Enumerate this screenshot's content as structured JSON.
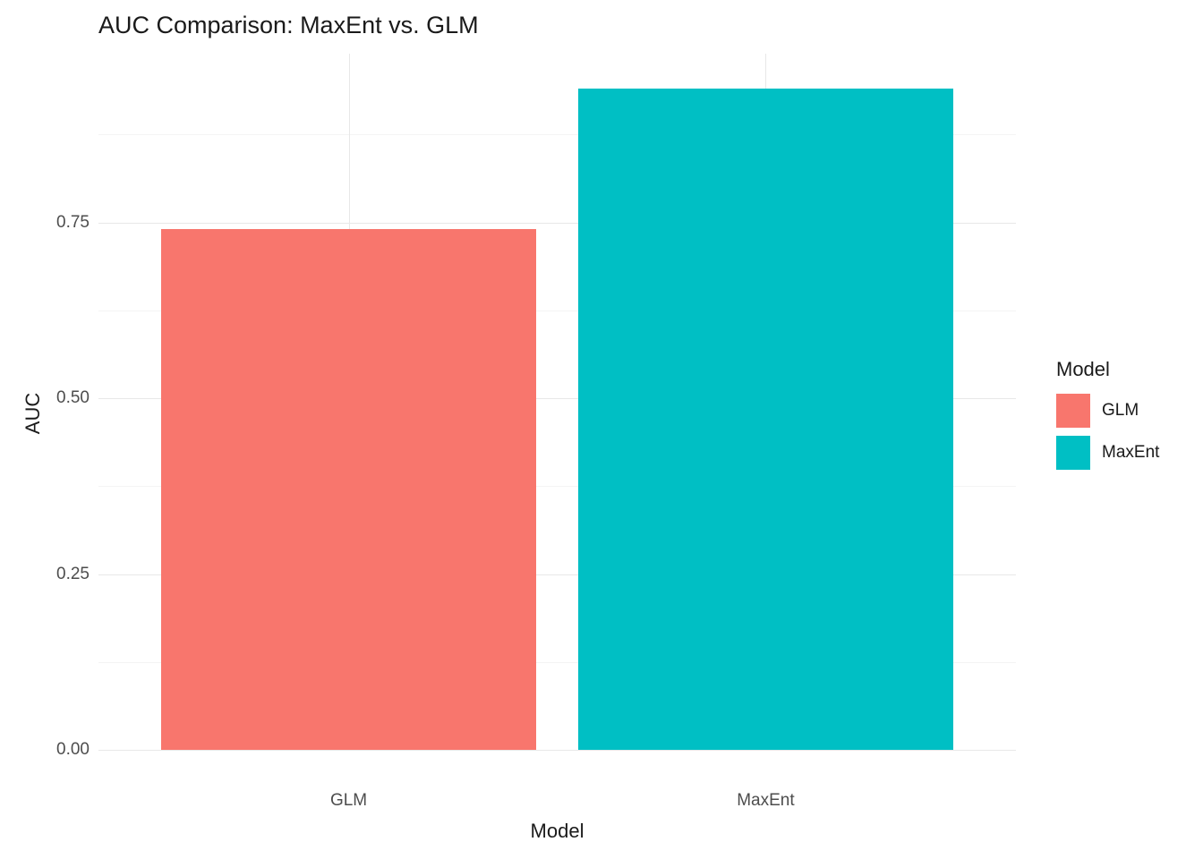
{
  "chart_data": {
    "type": "bar",
    "title": "AUC Comparison: MaxEnt vs. GLM",
    "xlabel": "Model",
    "ylabel": "AUC",
    "categories": [
      "GLM",
      "MaxEnt"
    ],
    "values": [
      0.74,
      0.94
    ],
    "colors": [
      "#F8766D",
      "#00BFC4"
    ],
    "ylim": [
      0,
      0.99
    ],
    "yticks": [
      0,
      0.25,
      0.5,
      0.75
    ],
    "ytick_labels": [
      "0.00",
      "0.25",
      "0.50",
      "0.75"
    ],
    "minor_ticks": [
      0.125,
      0.375,
      0.625,
      0.875
    ],
    "grid": true,
    "legend_position": "right",
    "legend": {
      "title": "Model",
      "entries": [
        {
          "label": "GLM",
          "color": "#F8766D"
        },
        {
          "label": "MaxEnt",
          "color": "#00BFC4"
        }
      ]
    }
  }
}
